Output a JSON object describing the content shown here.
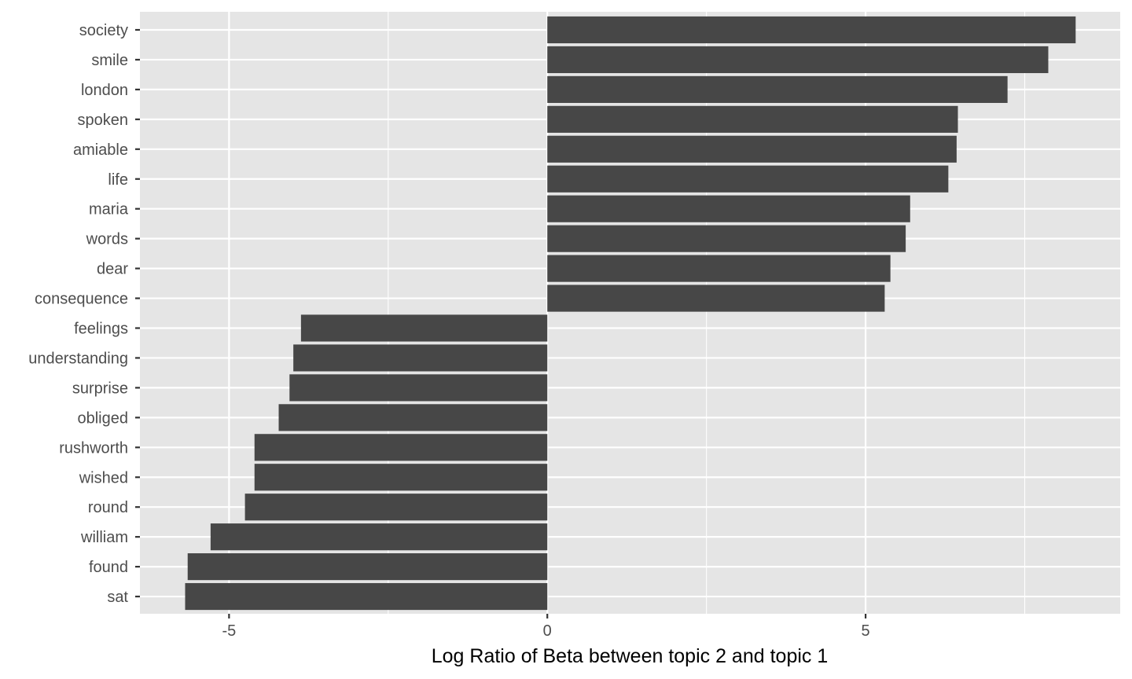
{
  "chart_data": {
    "type": "bar",
    "orientation": "horizontal",
    "title": "",
    "xlabel": "Log Ratio of Beta between topic 2 and topic 1",
    "ylabel": "",
    "xlim": [
      -6.4,
      9.0
    ],
    "x_ticks": [
      -5,
      0,
      5
    ],
    "x_tick_labels": [
      "-5",
      "0",
      "5"
    ],
    "grid": true,
    "legend": "none",
    "categories": [
      "society",
      "smile",
      "london",
      "spoken",
      "amiable",
      "life",
      "maria",
      "words",
      "dear",
      "consequence",
      "feelings",
      "understanding",
      "surprise",
      "obliged",
      "rushworth",
      "wished",
      "round",
      "william",
      "found",
      "sat"
    ],
    "values": [
      8.3,
      7.87,
      7.23,
      6.45,
      6.43,
      6.3,
      5.7,
      5.63,
      5.39,
      5.3,
      -3.87,
      -3.99,
      -4.05,
      -4.22,
      -4.6,
      -4.6,
      -4.75,
      -5.29,
      -5.65,
      -5.69
    ],
    "colors": {
      "panel": "#e5e5e5",
      "grid": "#ffffff",
      "bar": "#474747",
      "tick_text": "#4d4d4d",
      "axis_title": "#000000"
    }
  }
}
